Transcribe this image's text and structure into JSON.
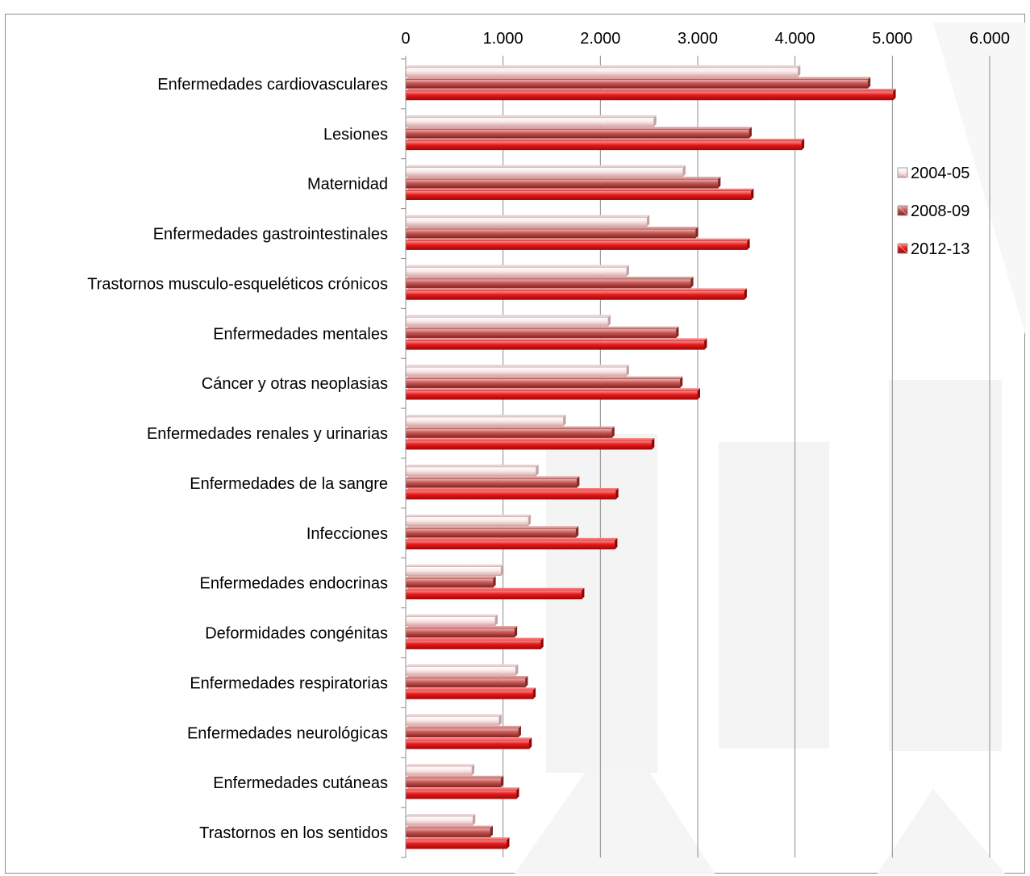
{
  "chart_data": {
    "type": "bar",
    "orientation": "horizontal",
    "title": "",
    "xlabel": "",
    "ylabel": "",
    "xlim": [
      0,
      6000
    ],
    "x_ticks": [
      0,
      1000,
      2000,
      3000,
      4000,
      5000,
      6000
    ],
    "x_tick_labels": [
      "0",
      "1.000",
      "2.000",
      "3.000",
      "4.000",
      "5.000",
      "6.000"
    ],
    "grid": true,
    "legend_position": "right",
    "categories": [
      "Enfermedades cardiovasculares",
      "Lesiones",
      "Maternidad",
      "Enfermedades gastrointestinales",
      "Trastornos musculo-esqueléticos crónicos",
      "Enfermedades mentales",
      "Cáncer y otras neoplasias",
      "Enfermedades renales y urinarias",
      "Enfermedades de la sangre",
      "Infecciones",
      "Enfermedades endocrinas",
      "Deformidades congénitas",
      "Enfermedades respiratorias",
      "Enfermedades neurológicas",
      "Enfermedades cutáneas",
      "Trastornos en los sentidos"
    ],
    "series": [
      {
        "name": "2004-05",
        "color": "#f2c4c4",
        "values": [
          4030,
          2550,
          2850,
          2480,
          2270,
          2080,
          2270,
          1620,
          1340,
          1260,
          980,
          920,
          1130,
          960,
          680,
          690
        ]
      },
      {
        "name": "2008-09",
        "color": "#c0504d",
        "values": [
          4750,
          3530,
          3210,
          2980,
          2930,
          2780,
          2820,
          2120,
          1760,
          1750,
          900,
          1120,
          1230,
          1160,
          980,
          870
        ]
      },
      {
        "name": "2012-13",
        "color": "#e0191a",
        "values": [
          5010,
          4070,
          3550,
          3510,
          3480,
          3070,
          3000,
          2530,
          2160,
          2150,
          1810,
          1390,
          1310,
          1270,
          1140,
          1040
        ]
      }
    ]
  }
}
